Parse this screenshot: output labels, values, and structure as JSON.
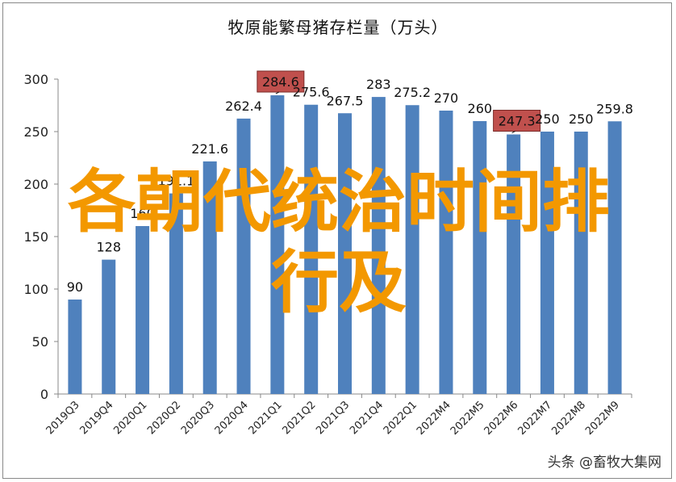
{
  "chart_data": {
    "type": "bar",
    "title": "牧原能繁母猪存栏量（万头）",
    "categories": [
      "2019Q3",
      "2019Q4",
      "2020Q1",
      "2020Q2",
      "2020Q3",
      "2020Q4",
      "2021Q1",
      "2021Q2",
      "2021Q3",
      "2021Q4",
      "2022Q1",
      "2022M4",
      "2022M5",
      "2022M6",
      "2022M7",
      "2022M8",
      "2022M9"
    ],
    "values": [
      90,
      128,
      160,
      191.1,
      221.6,
      262.4,
      284.6,
      275.6,
      267.5,
      283,
      275.2,
      270,
      260,
      247.3,
      250,
      250,
      259.8
    ],
    "data_labels": [
      "90",
      "128",
      "160",
      "191.1",
      "221.6",
      "262.4",
      "284.6",
      "275.6",
      "267.5",
      "283",
      "275.2",
      "270",
      "260",
      "247.3",
      "250",
      "250",
      "259.8"
    ],
    "highlighted": [
      "2021Q1",
      "2022M6"
    ],
    "ylim": [
      0,
      300
    ],
    "yticks": [
      0,
      50,
      100,
      150,
      200,
      250,
      300
    ],
    "xlabel": "",
    "ylabel": "",
    "grid": false,
    "bar_color": "#4f81bd",
    "highlight_color": "#c0504d"
  },
  "overlay_text": {
    "line1": "各朝代统治时间排",
    "line2": "行及",
    "color": "#f39800"
  },
  "watermark": "头条 @畜牧大集网"
}
